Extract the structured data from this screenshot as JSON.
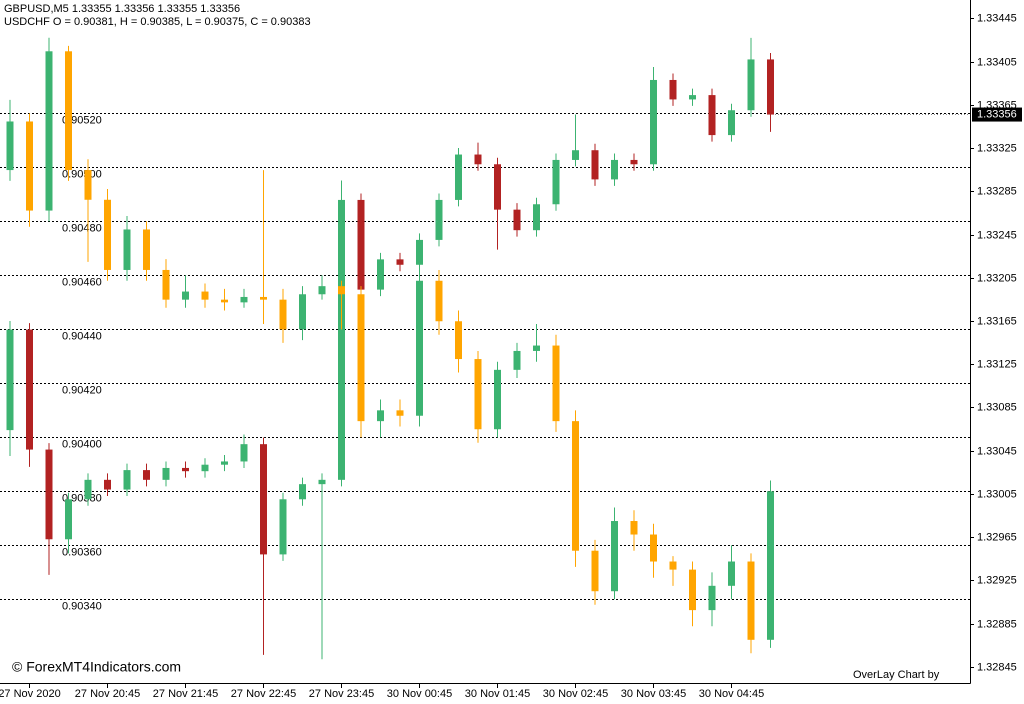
{
  "chart_data": {
    "type": "candlestick",
    "header": [
      "GBPUSD,M5  1.33355 1.33356 1.33355 1.33356",
      "USDCHF O = 0.90381, H = 0.90385, L = 0.90375, C = 0.90383"
    ],
    "watermark": "© ForexMT4Indicators.com",
    "note": "OverLay Chart by",
    "categories": [
      null,
      "27 Nov 2020",
      null,
      null,
      null,
      "27 Nov 20:45",
      null,
      null,
      null,
      "27 Nov 21:45",
      null,
      null,
      null,
      "27 Nov 22:45",
      null,
      null,
      null,
      "27 Nov 23:45",
      null,
      null,
      null,
      "30 Nov 00:45",
      null,
      null,
      null,
      "30 Nov 01:45",
      null,
      null,
      null,
      "30 Nov 02:45",
      null,
      null,
      null,
      "30 Nov 03:45",
      null,
      null,
      null,
      "30 Nov 04:45",
      null,
      null
    ],
    "ylim": [
      1.3283,
      1.33462
    ],
    "yticks": [
      1.33445,
      1.33405,
      1.33365,
      1.33325,
      1.33285,
      1.33245,
      1.33205,
      1.33165,
      1.33125,
      1.33085,
      1.33045,
      1.33005,
      1.32965,
      1.32925,
      1.32885,
      1.32845
    ],
    "y2lim": [
      0.90309,
      0.90562
    ],
    "y2ticks": [
      {
        "value": 0.9052,
        "label": "0.90520"
      },
      {
        "value": 0.905,
        "label": "0.90500"
      },
      {
        "value": 0.9048,
        "label": "0.90480"
      },
      {
        "value": 0.9046,
        "label": "0.90460"
      },
      {
        "value": 0.9044,
        "label": "0.90440"
      },
      {
        "value": 0.9042,
        "label": "0.90420"
      },
      {
        "value": 0.904,
        "label": "0.90400"
      },
      {
        "value": 0.9038,
        "label": "0.90380"
      },
      {
        "value": 0.9036,
        "label": "0.90360"
      },
      {
        "value": 0.9034,
        "label": "0.90340"
      }
    ],
    "grid": true,
    "series": [
      {
        "up_color": "#3cb371",
        "down_color": "#b22222",
        "open": [
          1.33064,
          1.33157,
          1.33046,
          1.32963,
          1.33,
          1.33018,
          1.33009,
          1.33027,
          1.33018,
          1.33029,
          1.33026,
          1.33032,
          1.33035,
          1.33051,
          1.32949,
          1.33,
          1.33014,
          1.33018,
          1.33277,
          1.33194,
          1.33222,
          1.33217,
          1.3324,
          1.33277,
          1.33319,
          1.3331,
          1.33268,
          1.33249,
          1.33273,
          1.33314,
          1.33323,
          1.33296,
          1.33314,
          1.3331,
          1.33388,
          1.3337,
          1.33374,
          1.33337,
          1.3336,
          1.33407
        ],
        "high": [
          1.33165,
          1.33163,
          1.33052,
          1.33006,
          1.33024,
          1.33024,
          1.33033,
          1.33033,
          1.33035,
          1.33035,
          1.33038,
          1.33041,
          1.3306,
          1.33057,
          1.33006,
          1.3302,
          1.33024,
          1.33295,
          1.33283,
          1.33228,
          1.33228,
          1.33246,
          1.33283,
          1.33325,
          1.3333,
          1.33316,
          1.33274,
          1.33279,
          1.3332,
          1.33356,
          1.33329,
          1.3332,
          1.3332,
          1.334,
          1.33394,
          1.3338,
          1.3338,
          1.33366,
          1.33427,
          1.33413
        ],
        "low": [
          1.3304,
          1.3303,
          1.3293,
          1.3295,
          1.32994,
          1.33003,
          1.33003,
          1.33012,
          1.33012,
          1.3302,
          1.3302,
          1.33026,
          1.33029,
          1.32856,
          1.32943,
          1.32994,
          1.32852,
          1.33012,
          1.33188,
          1.33188,
          1.33211,
          1.33211,
          1.33234,
          1.33271,
          1.33304,
          1.33231,
          1.33243,
          1.33243,
          1.33267,
          1.33308,
          1.3329,
          1.3329,
          1.33304,
          1.33304,
          1.33364,
          1.33364,
          1.33331,
          1.33331,
          1.33354,
          1.3334
        ],
        "close": [
          1.33157,
          1.33046,
          1.32963,
          1.33,
          1.33018,
          1.33009,
          1.33027,
          1.33018,
          1.33029,
          1.33026,
          1.33032,
          1.33035,
          1.33051,
          1.32949,
          1.33,
          1.33014,
          1.33018,
          1.33277,
          1.33194,
          1.33222,
          1.33217,
          1.3324,
          1.33277,
          1.33319,
          1.3331,
          1.33268,
          1.33249,
          1.33273,
          1.33314,
          1.33323,
          1.33296,
          1.33314,
          1.3331,
          1.33388,
          1.3337,
          1.33374,
          1.33337,
          1.3336,
          1.33407,
          1.33356
        ]
      },
      {
        "axis": "y2",
        "up_color": "#3cb371",
        "down_color": "#ffa500",
        "open": [
          0.90499,
          0.90517,
          0.90484,
          0.90543,
          0.90499,
          0.90488,
          0.90462,
          0.90477,
          0.90462,
          0.90451,
          0.90454,
          0.90451,
          0.9045,
          0.90452,
          0.90451,
          0.9044,
          0.90453,
          0.90456,
          0.90453,
          0.90406,
          0.9041,
          0.90408,
          0.90458,
          0.90443,
          0.90429,
          0.90403,
          0.90425,
          0.90432,
          0.90434,
          0.90406,
          0.90358,
          0.90343,
          0.90369,
          0.90364,
          0.90354,
          0.90351,
          0.90336,
          0.90345,
          0.90354,
          0.90325
        ],
        "high": [
          0.90525,
          0.9052,
          0.90548,
          0.90545,
          0.90503,
          0.90492,
          0.90482,
          0.9048,
          0.90466,
          0.9046,
          0.90457,
          0.90455,
          0.90455,
          0.90499,
          0.90455,
          0.90456,
          0.9046,
          0.90458,
          0.90456,
          0.90414,
          0.90414,
          0.90462,
          0.90462,
          0.90447,
          0.90432,
          0.90428,
          0.90435,
          0.90442,
          0.90438,
          0.9041,
          0.90362,
          0.90374,
          0.90373,
          0.90368,
          0.90356,
          0.90354,
          0.9035,
          0.9036,
          0.90357,
          0.90384
        ],
        "low": [
          0.90495,
          0.90478,
          0.9048,
          0.90495,
          0.90465,
          0.90458,
          0.90458,
          0.90458,
          0.90448,
          0.90448,
          0.90448,
          0.90447,
          0.90448,
          0.90442,
          0.90435,
          0.90436,
          0.90451,
          0.9044,
          0.904,
          0.904,
          0.90404,
          0.90404,
          0.90438,
          0.90424,
          0.90398,
          0.904,
          0.90422,
          0.90428,
          0.90402,
          0.90352,
          0.90338,
          0.9034,
          0.90358,
          0.90348,
          0.90345,
          0.9033,
          0.9033,
          0.9034,
          0.9032,
          0.90322
        ],
        "close": [
          0.90517,
          0.90484,
          0.90543,
          0.90499,
          0.90488,
          0.90462,
          0.90477,
          0.90462,
          0.90451,
          0.90454,
          0.90451,
          0.9045,
          0.90452,
          0.90451,
          0.9044,
          0.90453,
          0.90456,
          0.90453,
          0.90406,
          0.9041,
          0.90408,
          0.90458,
          0.90443,
          0.90429,
          0.90403,
          0.90425,
          0.90432,
          0.90434,
          0.90406,
          0.90358,
          0.90343,
          0.90369,
          0.90364,
          0.90354,
          0.90351,
          0.90336,
          0.90345,
          0.90354,
          0.90325,
          0.9038
        ]
      }
    ]
  }
}
